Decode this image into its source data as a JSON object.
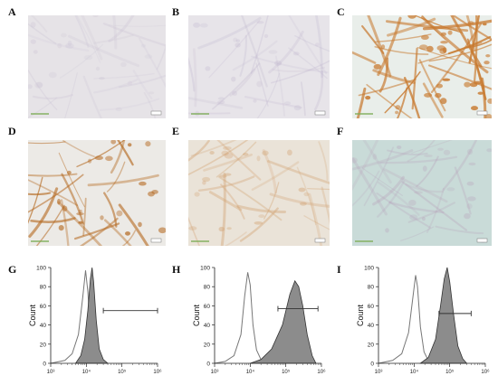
{
  "panels": {
    "A": {
      "label": "A"
    },
    "B": {
      "label": "B"
    },
    "C": {
      "label": "C"
    },
    "D": {
      "label": "D"
    },
    "E": {
      "label": "E"
    },
    "F": {
      "label": "F"
    },
    "G": {
      "label": "G"
    },
    "H": {
      "label": "H"
    },
    "I": {
      "label": "I"
    }
  },
  "micrographs": [
    {
      "panel": "A",
      "stain": "negative",
      "background": "#e6e3e7",
      "cell_color": "#c9c1d3"
    },
    {
      "panel": "B",
      "stain": "negative",
      "background": "#e7e4e9",
      "cell_color": "#bdb3cc"
    },
    {
      "panel": "C",
      "stain": "strong-positive",
      "background": "#e9eeea",
      "cell_color": "#c87a30"
    },
    {
      "panel": "D",
      "stain": "positive",
      "background": "#eceae6",
      "cell_color": "#b56a22"
    },
    {
      "panel": "E",
      "stain": "moderate-positive",
      "background": "#eae3d8",
      "cell_color": "#d2a272"
    },
    {
      "panel": "F",
      "stain": "control",
      "background": "#c9dbd8",
      "cell_color": "#b59ab7"
    }
  ],
  "chart_data": [
    {
      "panel": "G",
      "type": "area",
      "ylabel": "Count",
      "ylim": [
        0,
        100
      ],
      "yticks": [
        "0",
        "20",
        "40",
        "60",
        "80",
        "100"
      ],
      "xscale": "log",
      "xlim": [
        1000,
        1000000
      ],
      "xticks": [
        "10³",
        "10⁴",
        "10⁵",
        "10⁶"
      ],
      "series": [
        {
          "kind": "outline",
          "x": [
            1000,
            2500,
            4000,
            6000,
            8000,
            9500,
            11000,
            13000,
            16000,
            20000,
            30000
          ],
          "y": [
            0,
            3,
            10,
            30,
            70,
            97,
            75,
            35,
            12,
            4,
            0
          ]
        },
        {
          "kind": "filled",
          "x": [
            5000,
            7000,
            9000,
            11000,
            13000,
            14500,
            16000,
            19000,
            23000,
            30000,
            40000
          ],
          "y": [
            0,
            8,
            25,
            55,
            88,
            100,
            85,
            45,
            15,
            4,
            0
          ]
        }
      ],
      "gate": {
        "x": [
          30000,
          1000000
        ],
        "y": 55
      }
    },
    {
      "panel": "H",
      "type": "area",
      "ylabel": "Count",
      "ylim": [
        0,
        100
      ],
      "yticks": [
        "0",
        "20",
        "40",
        "60",
        "80",
        "100"
      ],
      "xscale": "log",
      "xlim": [
        1000,
        1000000
      ],
      "xticks": [
        "10³",
        "10⁴",
        "10⁵",
        "10⁶"
      ],
      "series": [
        {
          "kind": "outline",
          "x": [
            1000,
            2000,
            3500,
            5500,
            7000,
            8500,
            10000,
            12000,
            15000,
            20000,
            28000
          ],
          "y": [
            0,
            2,
            8,
            30,
            70,
            95,
            82,
            40,
            14,
            4,
            0
          ]
        },
        {
          "kind": "filled",
          "x": [
            10000,
            20000,
            40000,
            80000,
            130000,
            180000,
            230000,
            300000,
            400000,
            550000,
            700000
          ],
          "y": [
            0,
            4,
            15,
            40,
            72,
            86,
            80,
            60,
            30,
            8,
            0
          ]
        }
      ],
      "gate": {
        "x": [
          60000,
          800000
        ],
        "y": 57
      }
    },
    {
      "panel": "I",
      "type": "area",
      "ylabel": "Count",
      "ylim": [
        0,
        100
      ],
      "yticks": [
        "0",
        "20",
        "40",
        "60",
        "80",
        "100"
      ],
      "xscale": "log",
      "xlim": [
        1000,
        1000000
      ],
      "xticks": [
        "10³",
        "10⁴",
        "10⁵",
        "10⁶"
      ],
      "series": [
        {
          "kind": "outline",
          "x": [
            1000,
            2500,
            4500,
            7000,
            9000,
            11000,
            12500,
            15000,
            19000,
            25000,
            35000
          ],
          "y": [
            0,
            3,
            10,
            32,
            65,
            92,
            80,
            38,
            12,
            3,
            0
          ]
        },
        {
          "kind": "filled",
          "x": [
            15000,
            25000,
            40000,
            55000,
            70000,
            85000,
            100000,
            130000,
            170000,
            230000,
            300000
          ],
          "y": [
            0,
            6,
            25,
            60,
            88,
            100,
            85,
            50,
            18,
            5,
            0
          ]
        }
      ],
      "gate": {
        "x": [
          50000,
          400000
        ],
        "y": 52
      }
    }
  ]
}
